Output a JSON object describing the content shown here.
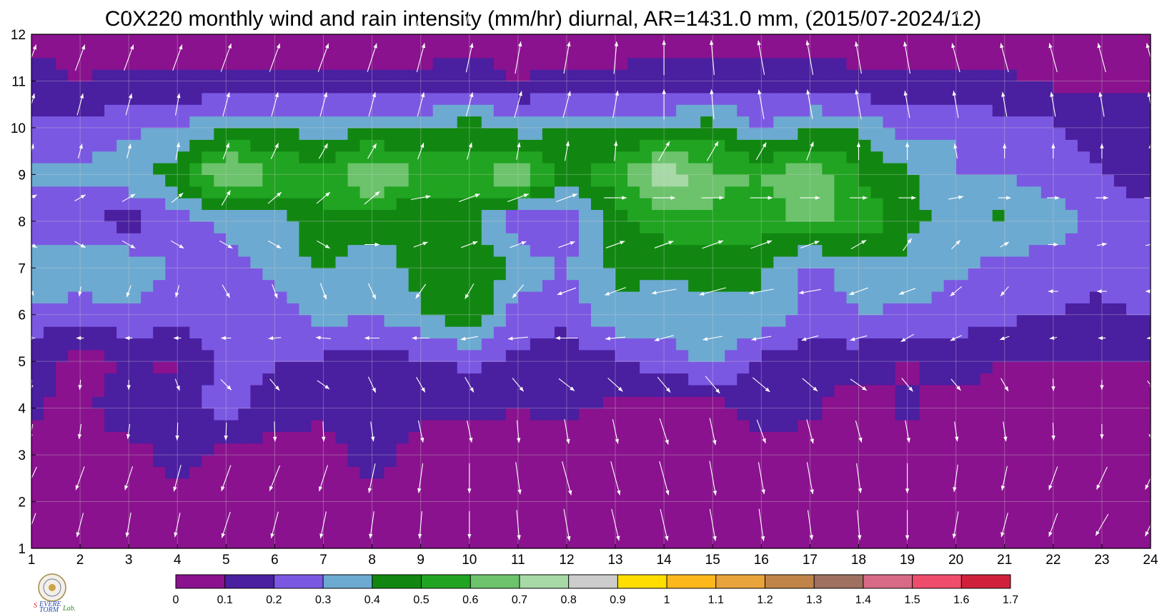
{
  "chart_data": {
    "type": "heatmap",
    "subtype": "filled-contour with wind vectors",
    "title": "C0X220 monthly wind and rain intensity (mm/hr) diurnal, AR=1431.0 mm, (2015/07-2024/12)",
    "xlabel": "",
    "ylabel": "",
    "xlim": [
      1,
      24
    ],
    "ylim": [
      1,
      12
    ],
    "x_ticks": [
      "1",
      "2",
      "3",
      "4",
      "5",
      "6",
      "7",
      "8",
      "9",
      "10",
      "11",
      "12",
      "13",
      "14",
      "15",
      "16",
      "17",
      "18",
      "19",
      "20",
      "21",
      "22",
      "23",
      "24"
    ],
    "y_ticks": [
      "1",
      "2",
      "3",
      "4",
      "5",
      "6",
      "7",
      "8",
      "9",
      "10",
      "11",
      "12"
    ],
    "grid": true,
    "colorbar": {
      "position": "bottom",
      "levels": [
        "0",
        "0.1",
        "0.2",
        "0.3",
        "0.4",
        "0.5",
        "0.6",
        "0.7",
        "0.8",
        "0.9",
        "1",
        "1.1",
        "1.2",
        "1.3",
        "1.4",
        "1.5",
        "1.6",
        "1.7"
      ],
      "colors": [
        "#8a128e",
        "#4a1fa0",
        "#7b58e2",
        "#6daad1",
        "#118711",
        "#21a421",
        "#6cc36c",
        "#a6d9a6",
        "#cccccc",
        "#ffde00",
        "#ffb81c",
        "#e8a43a",
        "#c08448",
        "#a07060",
        "#d86a86",
        "#ef4d6c",
        "#d0213c"
      ]
    },
    "series": [
      {
        "values": [
          [
            0.05,
            0.1,
            0.08,
            0.05,
            0.05,
            0.05,
            0.05,
            0.05,
            0.05,
            0.05,
            0.05,
            0.05,
            0.05,
            0.05,
            0.05,
            0.05,
            0.05,
            0.05,
            0.05,
            0.05,
            0.05,
            0.05,
            0.05,
            0.05
          ],
          [
            0.05,
            0.05,
            0.05,
            0.05,
            0.05,
            0.05,
            0.05,
            0.05,
            0.05,
            0.05,
            0.05,
            0.05,
            0.05,
            0.05,
            0.05,
            0.05,
            0.05,
            0.05,
            0.05,
            0.05,
            0.05,
            0.05,
            0.05,
            0.05
          ],
          [
            0.05,
            0.05,
            0.05,
            0.15,
            0.05,
            0.05,
            0.05,
            0.16,
            0.05,
            0.05,
            0.05,
            0.05,
            0.05,
            0.05,
            0.05,
            0.05,
            0.05,
            0.05,
            0.05,
            0.05,
            0.05,
            0.05,
            0.05,
            0.05
          ],
          [
            0.12,
            0.05,
            0.2,
            0.15,
            0.25,
            0.15,
            0.12,
            0.15,
            0.12,
            0.12,
            0.1,
            0.12,
            0.08,
            0.05,
            0.05,
            0.15,
            0.12,
            0.05,
            0.12,
            0.05,
            0.05,
            0.05,
            0.05,
            0.05
          ],
          [
            0.15,
            0.06,
            0.1,
            0.08,
            0.25,
            0.2,
            0.18,
            0.16,
            0.18,
            0.22,
            0.18,
            0.15,
            0.18,
            0.25,
            0.32,
            0.18,
            0.12,
            0.15,
            0.08,
            0.15,
            0.1,
            0.1,
            0.1,
            0.1
          ],
          [
            0.25,
            0.22,
            0.28,
            0.25,
            0.28,
            0.25,
            0.35,
            0.3,
            0.38,
            0.5,
            0.25,
            0.22,
            0.38,
            0.35,
            0.38,
            0.38,
            0.25,
            0.3,
            0.28,
            0.25,
            0.22,
            0.2,
            0.18,
            0.2
          ],
          [
            0.42,
            0.42,
            0.38,
            0.28,
            0.28,
            0.32,
            0.42,
            0.32,
            0.45,
            0.48,
            0.38,
            0.3,
            0.42,
            0.42,
            0.42,
            0.42,
            0.25,
            0.35,
            0.38,
            0.32,
            0.25,
            0.25,
            0.22,
            0.32
          ],
          [
            0.22,
            0.22,
            0.15,
            0.25,
            0.32,
            0.35,
            0.48,
            0.45,
            0.4,
            0.42,
            0.22,
            0.2,
            0.45,
            0.55,
            0.58,
            0.55,
            0.62,
            0.58,
            0.42,
            0.38,
            0.42,
            0.35,
            0.28,
            0.22
          ],
          [
            0.33,
            0.33,
            0.38,
            0.45,
            0.75,
            0.6,
            0.55,
            0.72,
            0.58,
            0.55,
            0.7,
            0.48,
            0.55,
            0.8,
            0.62,
            0.6,
            0.68,
            0.5,
            0.42,
            0.3,
            0.3,
            0.25,
            0.2,
            0.15
          ],
          [
            0.22,
            0.22,
            0.28,
            0.3,
            0.38,
            0.4,
            0.35,
            0.4,
            0.38,
            0.45,
            0.35,
            0.4,
            0.4,
            0.38,
            0.45,
            0.3,
            0.4,
            0.38,
            0.25,
            0.3,
            0.22,
            0.22,
            0.15,
            0.15
          ],
          [
            0.15,
            0.1,
            0.12,
            0.12,
            0.12,
            0.12,
            0.12,
            0.12,
            0.12,
            0.15,
            0.1,
            0.12,
            0.12,
            0.15,
            0.15,
            0.15,
            0.15,
            0.12,
            0.12,
            0.12,
            0.12,
            0.08,
            0.08,
            0.08
          ],
          [
            0.05,
            0.05,
            0.05,
            0.05,
            0.05,
            0.05,
            0.05,
            0.05,
            0.05,
            0.05,
            0.05,
            0.05,
            0.05,
            0.05,
            0.05,
            0.05,
            0.05,
            0.05,
            0.05,
            0.05,
            0.05,
            0.05,
            0.05,
            0.05
          ]
        ]
      }
    ],
    "wind_vectors": {
      "x": [
        1,
        2,
        3,
        4,
        5,
        6,
        7,
        8,
        9,
        10,
        11,
        12,
        13,
        14,
        15,
        16,
        17,
        18,
        19,
        20,
        21,
        22,
        23,
        24
      ],
      "angle_deg": [
        [
          250,
          255,
          260,
          258,
          252,
          255,
          258,
          262,
          265,
          270,
          275,
          280,
          283,
          283,
          280,
          278,
          278,
          275,
          270,
          260,
          255,
          250,
          240,
          245
        ],
        [
          245,
          250,
          252,
          255,
          250,
          248,
          252,
          258,
          262,
          270,
          278,
          285,
          285,
          285,
          280,
          280,
          280,
          278,
          270,
          262,
          258,
          250,
          245,
          245
        ],
        [
          260,
          262,
          262,
          268,
          268,
          272,
          272,
          278,
          282,
          282,
          275,
          280,
          282,
          288,
          282,
          290,
          285,
          285,
          280,
          278,
          278,
          272,
          270,
          270
        ],
        [
          265,
          265,
          270,
          290,
          315,
          310,
          325,
          295,
          300,
          300,
          310,
          322,
          318,
          310,
          310,
          320,
          320,
          325,
          310,
          310,
          300,
          272,
          270,
          310
        ],
        [
          180,
          180,
          180,
          180,
          180,
          185,
          175,
          180,
          180,
          190,
          185,
          180,
          185,
          195,
          190,
          190,
          195,
          195,
          210,
          205,
          200,
          190,
          180,
          185
        ],
        [
          295,
          260,
          250,
          255,
          300,
          290,
          290,
          295,
          235,
          240,
          230,
          200,
          200,
          190,
          195,
          190,
          190,
          200,
          200,
          220,
          230,
          180,
          180,
          180
        ],
        [
          330,
          330,
          330,
          330,
          330,
          330,
          330,
          0,
          20,
          20,
          20,
          20,
          20,
          20,
          20,
          20,
          20,
          30,
          55,
          45,
          30,
          0,
          10,
          10
        ],
        [
          30,
          30,
          30,
          40,
          60,
          40,
          40,
          40,
          10,
          20,
          20,
          20,
          0,
          0,
          0,
          0,
          0,
          0,
          0,
          10,
          0,
          0,
          0,
          0
        ],
        [
          75,
          75,
          75,
          80,
          70,
          65,
          60,
          60,
          70,
          75,
          80,
          80,
          85,
          60,
          60,
          60,
          70,
          90,
          90,
          100,
          90,
          90,
          90,
          90
        ],
        [
          75,
          75,
          75,
          80,
          75,
          75,
          75,
          75,
          75,
          75,
          75,
          75,
          80,
          90,
          95,
          100,
          100,
          100,
          100,
          100,
          100,
          100,
          100,
          100
        ],
        [
          70,
          70,
          70,
          70,
          70,
          70,
          70,
          72,
          75,
          78,
          80,
          80,
          85,
          90,
          95,
          100,
          100,
          100,
          100,
          105,
          105,
          105,
          105,
          105
        ],
        [
          70,
          70,
          70,
          70,
          70,
          70,
          70,
          72,
          75,
          78,
          80,
          82,
          85,
          90,
          95,
          100,
          100,
          100,
          100,
          105,
          105,
          105,
          105,
          105
        ]
      ],
      "speed": [
        [
          0.5,
          0.5,
          0.5,
          0.5,
          0.55,
          0.55,
          0.55,
          0.55,
          0.55,
          0.55,
          0.6,
          0.65,
          0.65,
          0.65,
          0.65,
          0.65,
          0.6,
          0.6,
          0.6,
          0.55,
          0.5,
          0.5,
          0.5,
          0.5
        ],
        [
          0.5,
          0.5,
          0.5,
          0.55,
          0.55,
          0.55,
          0.55,
          0.6,
          0.6,
          0.6,
          0.65,
          0.7,
          0.7,
          0.7,
          0.7,
          0.65,
          0.65,
          0.6,
          0.6,
          0.55,
          0.5,
          0.5,
          0.5,
          0.5
        ],
        [
          0.3,
          0.3,
          0.3,
          0.35,
          0.35,
          0.4,
          0.4,
          0.4,
          0.45,
          0.45,
          0.45,
          0.5,
          0.5,
          0.55,
          0.55,
          0.5,
          0.5,
          0.45,
          0.45,
          0.4,
          0.4,
          0.35,
          0.3,
          0.3
        ],
        [
          0.2,
          0.2,
          0.2,
          0.25,
          0.3,
          0.3,
          0.3,
          0.35,
          0.35,
          0.35,
          0.35,
          0.4,
          0.4,
          0.4,
          0.45,
          0.45,
          0.4,
          0.4,
          0.35,
          0.3,
          0.3,
          0.25,
          0.2,
          0.2
        ],
        [
          0.15,
          0.15,
          0.15,
          0.15,
          0.2,
          0.25,
          0.3,
          0.3,
          0.35,
          0.35,
          0.4,
          0.45,
          0.4,
          0.4,
          0.4,
          0.4,
          0.35,
          0.35,
          0.3,
          0.25,
          0.2,
          0.15,
          0.15,
          0.15
        ],
        [
          0.2,
          0.2,
          0.25,
          0.25,
          0.3,
          0.3,
          0.35,
          0.35,
          0.35,
          0.35,
          0.35,
          0.4,
          0.45,
          0.5,
          0.55,
          0.5,
          0.45,
          0.4,
          0.35,
          0.3,
          0.25,
          0.2,
          0.2,
          0.2
        ],
        [
          0.25,
          0.25,
          0.3,
          0.3,
          0.3,
          0.3,
          0.3,
          0.3,
          0.3,
          0.35,
          0.35,
          0.35,
          0.4,
          0.4,
          0.45,
          0.45,
          0.4,
          0.35,
          0.3,
          0.25,
          0.2,
          0.2,
          0.2,
          0.2
        ],
        [
          0.25,
          0.25,
          0.3,
          0.3,
          0.35,
          0.35,
          0.35,
          0.4,
          0.4,
          0.45,
          0.45,
          0.45,
          0.45,
          0.45,
          0.45,
          0.45,
          0.4,
          0.35,
          0.35,
          0.3,
          0.25,
          0.25,
          0.25,
          0.25
        ],
        [
          0.3,
          0.3,
          0.3,
          0.35,
          0.35,
          0.35,
          0.35,
          0.35,
          0.35,
          0.35,
          0.35,
          0.4,
          0.4,
          0.45,
          0.45,
          0.4,
          0.4,
          0.35,
          0.35,
          0.3,
          0.3,
          0.3,
          0.3,
          0.3
        ],
        [
          0.45,
          0.45,
          0.45,
          0.45,
          0.5,
          0.5,
          0.5,
          0.5,
          0.5,
          0.5,
          0.55,
          0.55,
          0.55,
          0.6,
          0.6,
          0.6,
          0.6,
          0.6,
          0.55,
          0.55,
          0.5,
          0.5,
          0.5,
          0.5
        ],
        [
          0.55,
          0.55,
          0.55,
          0.55,
          0.6,
          0.6,
          0.6,
          0.6,
          0.6,
          0.6,
          0.65,
          0.65,
          0.65,
          0.7,
          0.7,
          0.7,
          0.7,
          0.65,
          0.65,
          0.6,
          0.6,
          0.6,
          0.6,
          0.6
        ],
        [
          0.55,
          0.55,
          0.55,
          0.55,
          0.6,
          0.6,
          0.6,
          0.6,
          0.6,
          0.6,
          0.65,
          0.65,
          0.65,
          0.7,
          0.7,
          0.7,
          0.7,
          0.65,
          0.65,
          0.6,
          0.6,
          0.6,
          0.6,
          0.6
        ]
      ]
    }
  }
}
